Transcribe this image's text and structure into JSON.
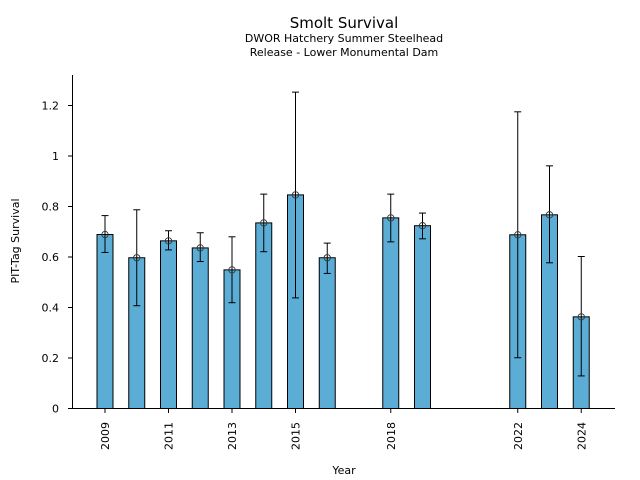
{
  "chart_data": {
    "type": "bar",
    "title": "Smolt Survival",
    "subtitle_lines": [
      "DWOR Hatchery Summer Steelhead",
      "Release - Lower Monumental Dam"
    ],
    "xlabel": "Year",
    "ylabel": "PIT-Tag Survival",
    "ylim": [
      0,
      1.32
    ],
    "xlim": [
      2008.0,
      2025.0
    ],
    "yticks": [
      0,
      0.2,
      0.4,
      0.6,
      0.8,
      1,
      1.2
    ],
    "ytick_labels": [
      "0",
      "0.2",
      "0.4",
      "0.6",
      "0.8",
      "1",
      "1.2"
    ],
    "xticks": [
      2009,
      2011,
      2013,
      2015,
      2018,
      2022,
      2024
    ],
    "xtick_labels": [
      "2009",
      "2011",
      "2013",
      "2015",
      "2018",
      "2022",
      "2024"
    ],
    "grid": false,
    "bar_color": "#5BADD6",
    "edge_color": "#000000",
    "series": [
      {
        "name": "PIT-Tag Survival",
        "x": [
          2009,
          2010,
          2011,
          2012,
          2013,
          2014,
          2015,
          2016,
          2018,
          2019,
          2022,
          2023,
          2024
        ],
        "values": [
          0.689,
          0.597,
          0.664,
          0.636,
          0.549,
          0.735,
          0.846,
          0.597,
          0.755,
          0.724,
          0.688,
          0.767,
          0.363
        ],
        "err_upper": [
          0.764,
          0.787,
          0.704,
          0.696,
          0.68,
          0.849,
          1.253,
          0.655,
          0.849,
          0.774,
          1.175,
          0.961,
          0.602
        ],
        "err_lower": [
          0.618,
          0.407,
          0.628,
          0.582,
          0.419,
          0.621,
          0.438,
          0.535,
          0.66,
          0.672,
          0.201,
          0.577,
          0.129
        ]
      }
    ]
  }
}
